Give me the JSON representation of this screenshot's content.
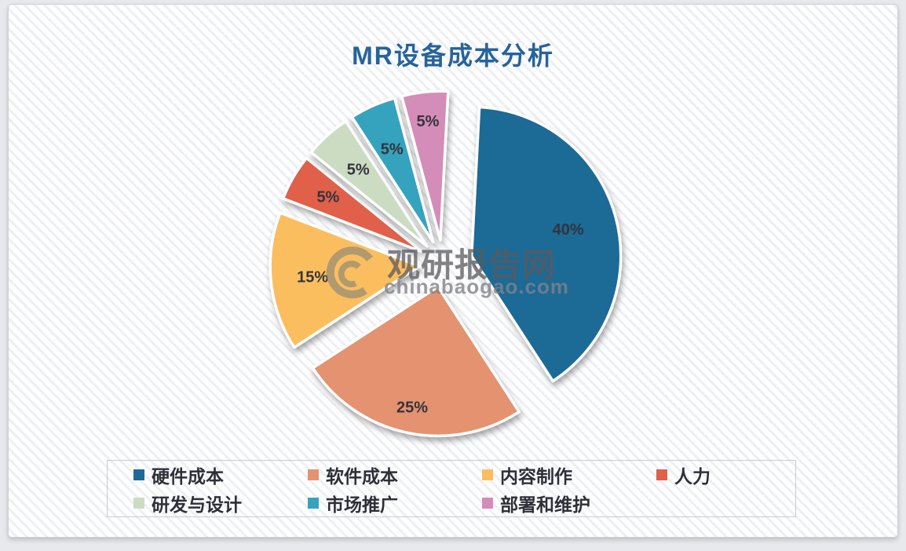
{
  "title": "MR设备成本分析",
  "watermark": {
    "name": "观研报告网",
    "domain": "chinabaogao.com"
  },
  "chart_data": {
    "type": "pie",
    "title": "MR设备成本分析",
    "start_angle_deg": 3,
    "direction": "clockwise",
    "legend_position": "bottom",
    "slices": [
      {
        "key": "hardware-cost",
        "label": "硬件成本",
        "value": 40,
        "pct_label": "40%",
        "color": "#1E6A96",
        "explode": 38,
        "label_r": 0.67
      },
      {
        "key": "software-cost",
        "label": "软件成本",
        "value": 25,
        "pct_label": "25%",
        "color": "#E4926F",
        "explode": 30,
        "label_r": 0.83
      },
      {
        "key": "content-production",
        "label": "内容制作",
        "value": 15,
        "pct_label": "15%",
        "color": "#FBBE5E",
        "explode": 30,
        "label_r": 0.72
      },
      {
        "key": "labor",
        "label": "人力",
        "value": 5,
        "pct_label": "5%",
        "color": "#E0604A",
        "explode": 30,
        "label_r": 0.73
      },
      {
        "key": "rnd-design",
        "label": "研发与设计",
        "value": 5,
        "pct_label": "5%",
        "color": "#CCDCC3",
        "explode": 30,
        "label_r": 0.69
      },
      {
        "key": "marketing",
        "label": "市场推广",
        "value": 5,
        "pct_label": "5%",
        "color": "#35A3BE",
        "explode": 30,
        "label_r": 0.68
      },
      {
        "key": "deployment-maintenance",
        "label": "部署和维护",
        "value": 5,
        "pct_label": "5%",
        "color": "#D48CB8",
        "explode": 30,
        "label_r": 0.8
      }
    ]
  }
}
